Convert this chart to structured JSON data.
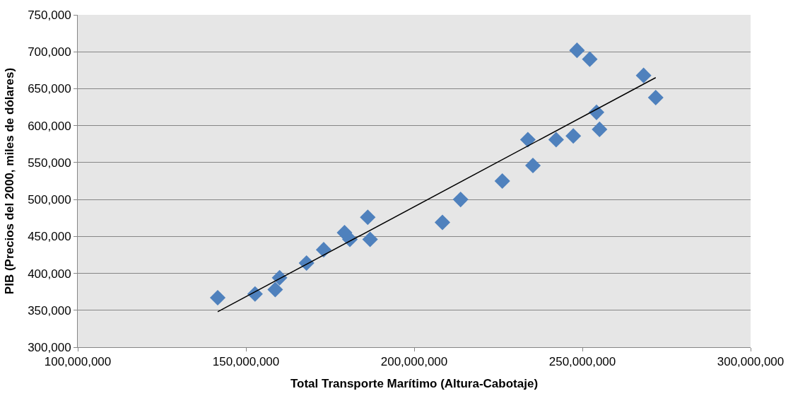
{
  "chart_data": {
    "type": "scatter",
    "xlabel": "Total Transporte Marítimo (Altura-Cabotaje)",
    "ylabel": "PIB (Precios del 2000, miles de dólares)",
    "xlim": [
      100000000,
      300000000
    ],
    "xticks": [
      {
        "value": 100000000,
        "label": "100,000,000"
      },
      {
        "value": 150000000,
        "label": "150,000,000"
      },
      {
        "value": 200000000,
        "label": "200,000,000"
      },
      {
        "value": 250000000,
        "label": "250,000,000"
      },
      {
        "value": 300000000,
        "label": "300,000,000"
      }
    ],
    "ylim": [
      300000,
      750000
    ],
    "yticks": [
      {
        "value": 300000,
        "label": "300,000"
      },
      {
        "value": 350000,
        "label": "350,000"
      },
      {
        "value": 400000,
        "label": "400,000"
      },
      {
        "value": 450000,
        "label": "450,000"
      },
      {
        "value": 500000,
        "label": "500,000"
      },
      {
        "value": 550000,
        "label": "550,000"
      },
      {
        "value": 600000,
        "label": "600,000"
      },
      {
        "value": 650000,
        "label": "650,000"
      },
      {
        "value": 700000,
        "label": "700,000"
      },
      {
        "value": 750000,
        "label": "750,000"
      }
    ],
    "grid": "y",
    "series": [
      {
        "marker": "diamond",
        "color": "#4f81bd",
        "x": [
          141600000,
          152700000,
          158700000,
          160000000,
          168000000,
          173100000,
          179300000,
          180900000,
          186200000,
          186900000,
          208400000,
          213800000,
          226200000,
          233800000,
          235300000,
          242200000,
          247300000,
          248400000,
          252200000,
          254200000,
          255100000,
          268200000,
          271800000
        ],
        "values": [
          367000,
          372000,
          378000,
          394000,
          414000,
          432000,
          455000,
          446000,
          476000,
          446000,
          469000,
          500000,
          525000,
          581000,
          546000,
          581000,
          586000,
          702000,
          690000,
          618000,
          595000,
          668000,
          638000
        ]
      },
      {
        "type": "line",
        "marker": "none",
        "color": "#000000",
        "x": [
          141600000,
          271800000
        ],
        "values": [
          348000,
          665000
        ]
      }
    ]
  }
}
